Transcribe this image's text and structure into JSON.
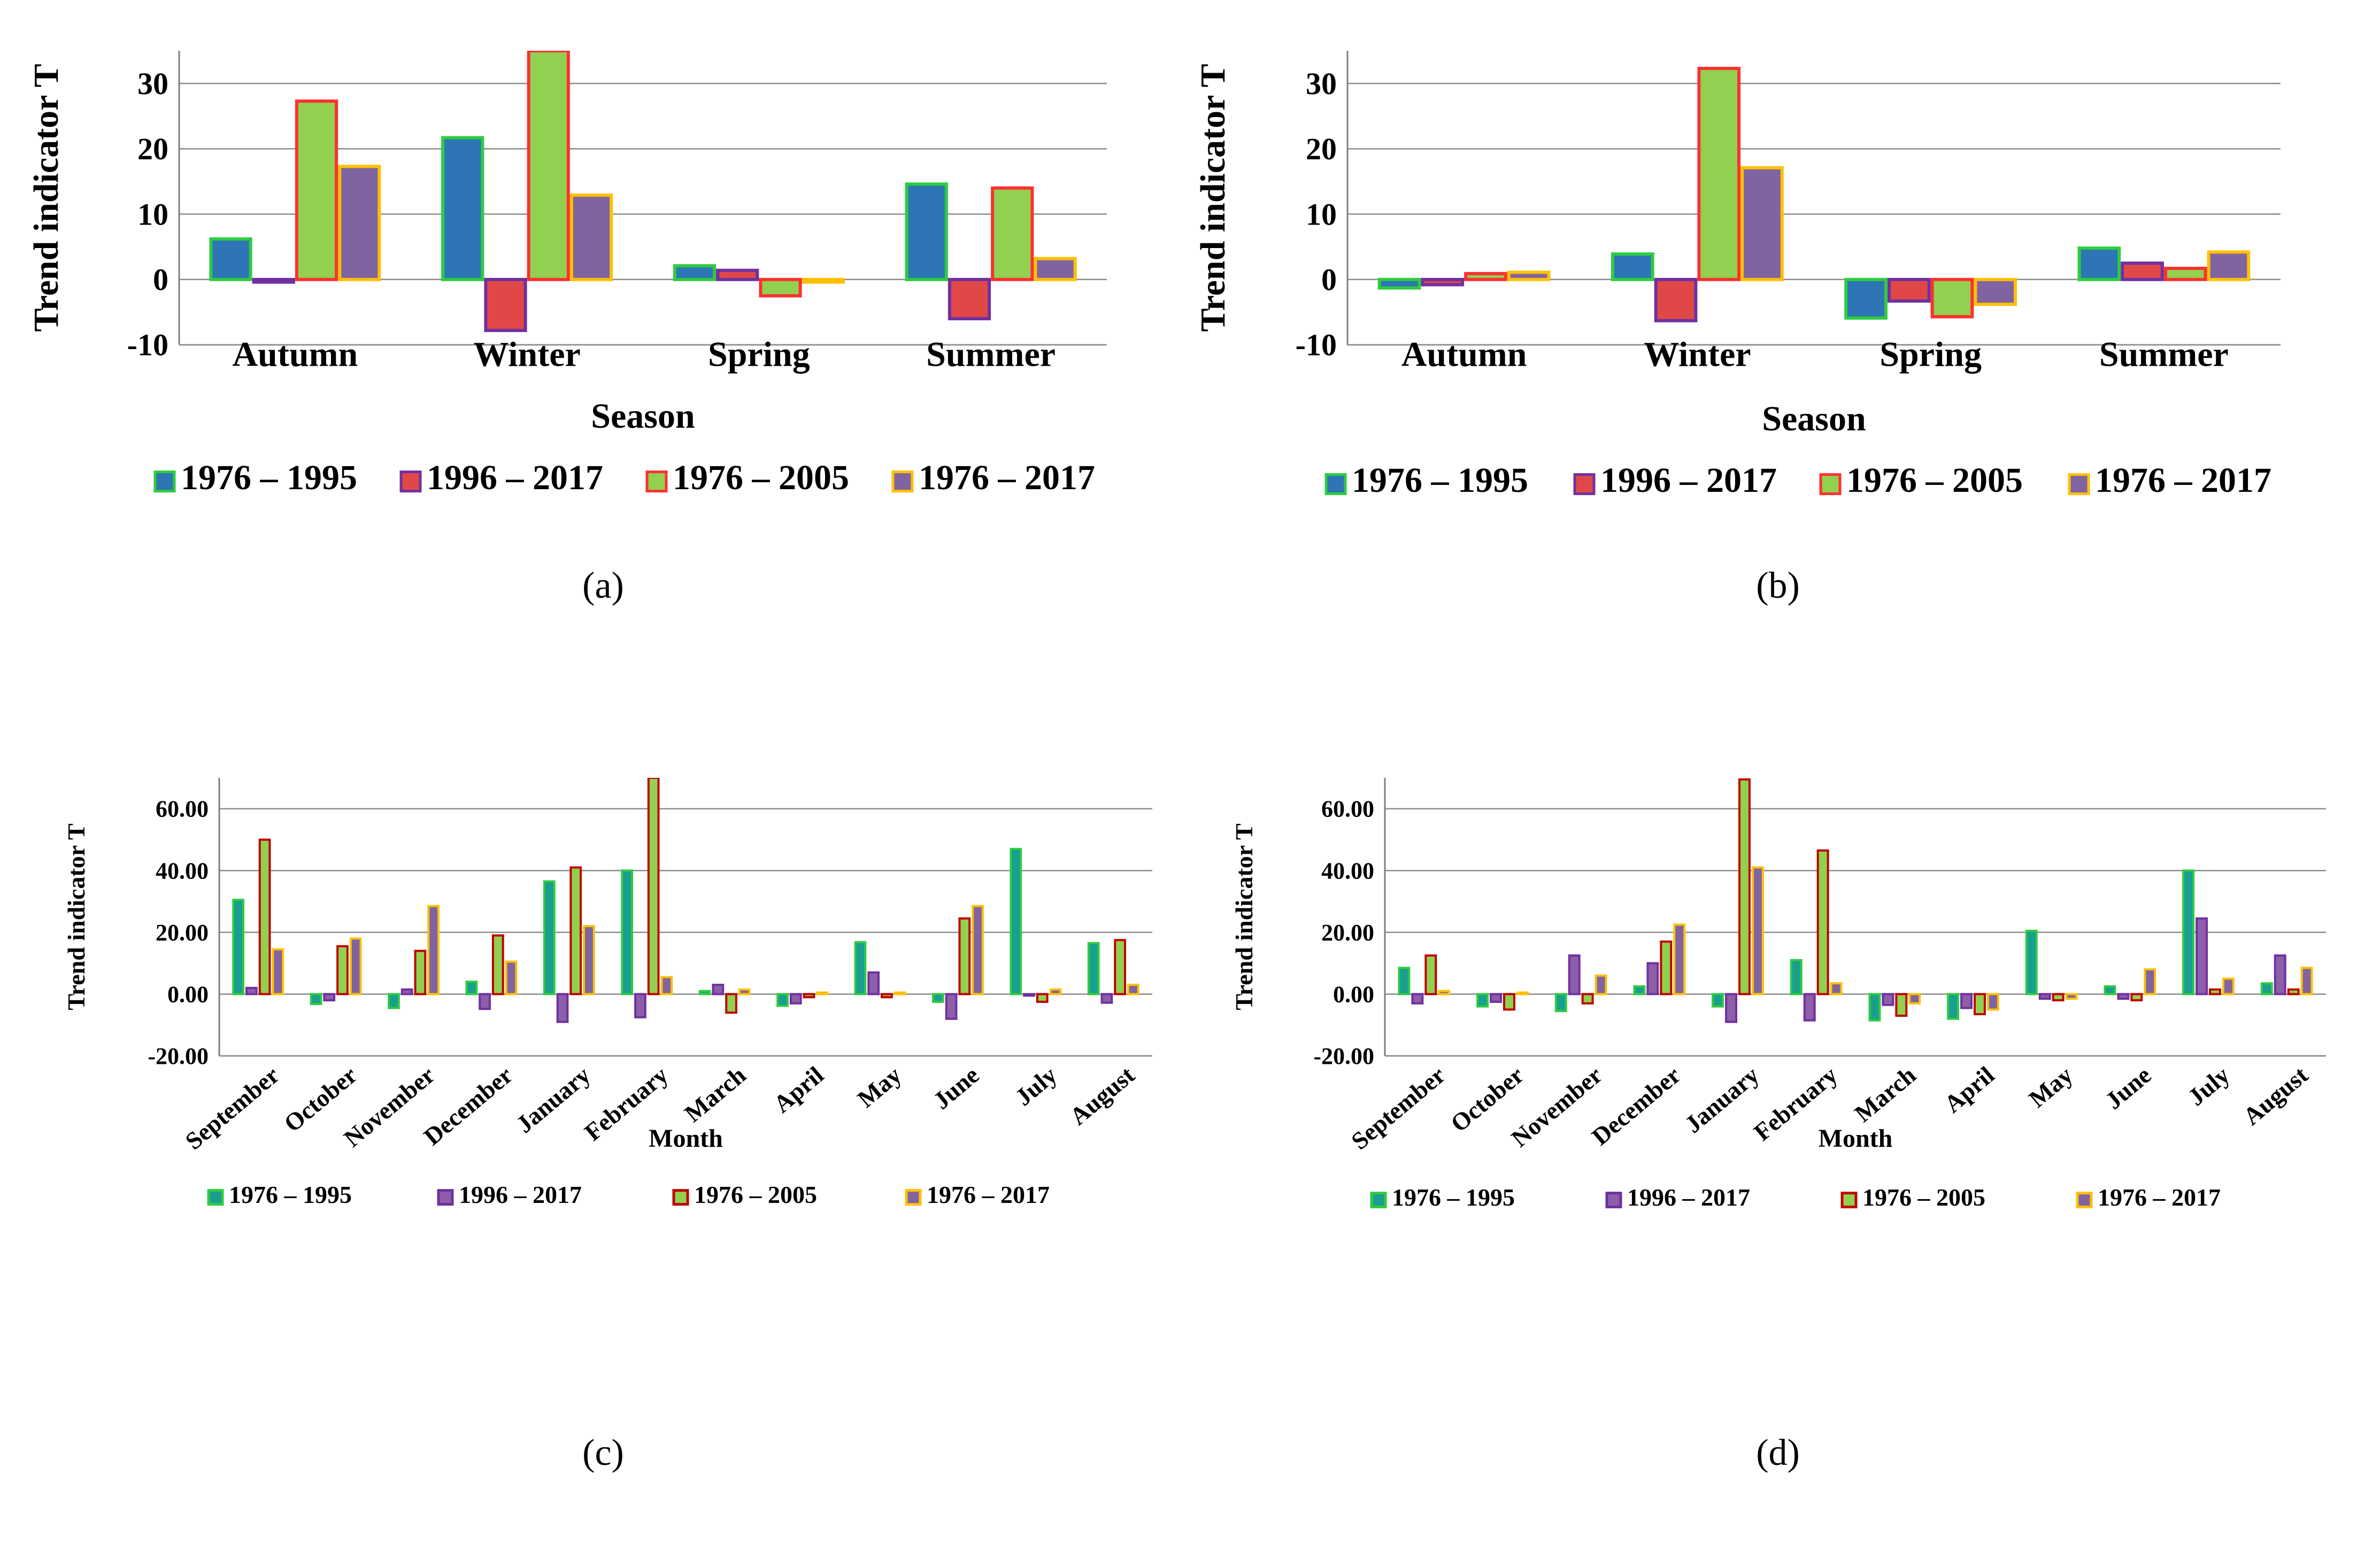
{
  "figure": {
    "captions": [
      "(a)",
      "(b)",
      "(c)",
      "(d)"
    ]
  },
  "colors": {
    "s1_fill": "#2e75b6",
    "s1_teal": "#1a9e8f",
    "s2_fill": "#e04848",
    "s2_purple": "#8c5fa8",
    "s3_fill": "#92d050",
    "s4_fill": "#8064a2",
    "edge_green": "#2ecc40",
    "edge_purple": "#7030a0",
    "edge_red": "#ff3030",
    "edge_darkred": "#c00000",
    "edge_yellow": "#ffc000"
  },
  "chart_data": [
    {
      "id": "a",
      "type": "bar",
      "xlabel": "Season",
      "ylabel": "Trend indicator T",
      "ylim": [
        -10,
        35
      ],
      "yticks": [
        "-10",
        "0",
        "10",
        "20",
        "30"
      ],
      "categories": [
        "Autumn",
        "Winter",
        "Spring",
        "Summer"
      ],
      "series": [
        {
          "name": "1976 – 1995",
          "values": [
            6.2,
            21.7,
            2.1,
            14.6
          ]
        },
        {
          "name": "1996 – 2017",
          "values": [
            -0.4,
            -7.8,
            1.4,
            -6.0
          ]
        },
        {
          "name": "1976 – 2005",
          "values": [
            27.3,
            35.0,
            -2.5,
            14.0
          ]
        },
        {
          "name": "1976 – 2017",
          "values": [
            17.3,
            12.9,
            -0.4,
            3.2
          ]
        }
      ]
    },
    {
      "id": "b",
      "type": "bar",
      "xlabel": "Season",
      "ylabel": "Trend indicator T",
      "ylim": [
        -10,
        35
      ],
      "yticks": [
        "-10",
        "0",
        "10",
        "20",
        "30"
      ],
      "categories": [
        "Autumn",
        "Winter",
        "Spring",
        "Summer"
      ],
      "series": [
        {
          "name": "1976 – 1995",
          "values": [
            -1.3,
            3.9,
            -5.9,
            4.8
          ]
        },
        {
          "name": "1996 – 2017",
          "values": [
            -0.8,
            -6.3,
            -3.3,
            2.5
          ]
        },
        {
          "name": "1976 – 2005",
          "values": [
            0.9,
            32.3,
            -5.7,
            1.7
          ]
        },
        {
          "name": "1976 – 2017",
          "values": [
            1.1,
            17.1,
            -3.8,
            4.2
          ]
        }
      ]
    },
    {
      "id": "c",
      "type": "bar",
      "xlabel": "Month",
      "ylabel": "Trend indicator T",
      "ylim": [
        -20,
        70
      ],
      "yticks": [
        "-20.00",
        "0.00",
        "20.00",
        "40.00",
        "60.00"
      ],
      "categories": [
        "September",
        "October",
        "November",
        "December",
        "January",
        "February",
        "March",
        "April",
        "May",
        "June",
        "July",
        "August"
      ],
      "series": [
        {
          "name": "1976 – 1995",
          "values": [
            30.5,
            -3.2,
            -4.5,
            4.0,
            36.5,
            40.0,
            1.0,
            -3.8,
            16.8,
            -2.5,
            47.0,
            16.5
          ]
        },
        {
          "name": "1996 – 2017",
          "values": [
            2.0,
            -2.0,
            1.5,
            -4.8,
            -9.0,
            -7.5,
            3.0,
            -3.0,
            7.0,
            -8.0,
            -0.5,
            -2.8
          ]
        },
        {
          "name": "1976 – 2005",
          "values": [
            50.0,
            15.5,
            14.0,
            19.0,
            41.0,
            70.0,
            -6.0,
            -1.0,
            -1.0,
            24.5,
            -2.5,
            17.5
          ]
        },
        {
          "name": "1976 – 2017",
          "values": [
            14.5,
            18.0,
            28.5,
            10.5,
            22.0,
            5.5,
            1.5,
            0.5,
            0.5,
            28.5,
            1.5,
            3.0
          ]
        }
      ]
    },
    {
      "id": "d",
      "type": "bar",
      "xlabel": "Month",
      "ylabel": "Trend indicator T",
      "ylim": [
        -20,
        70
      ],
      "yticks": [
        "-20.00",
        "0.00",
        "20.00",
        "40.00",
        "60.00"
      ],
      "categories": [
        "September",
        "October",
        "November",
        "December",
        "January",
        "February",
        "March",
        "April",
        "May",
        "June",
        "July",
        "August"
      ],
      "series": [
        {
          "name": "1976 – 1995",
          "values": [
            8.5,
            -4.0,
            -5.5,
            2.5,
            -4.0,
            11.0,
            -8.5,
            -8.0,
            20.5,
            2.5,
            40.0,
            3.5
          ]
        },
        {
          "name": "1996 – 2017",
          "values": [
            -3.0,
            -2.5,
            12.5,
            10.0,
            -9.0,
            -8.5,
            -3.5,
            -4.5,
            -1.5,
            -1.5,
            24.5,
            12.5
          ]
        },
        {
          "name": "1976 – 2005",
          "values": [
            12.5,
            -5.0,
            -3.0,
            17.0,
            69.5,
            46.5,
            -7.0,
            -6.5,
            -2.0,
            -2.0,
            1.5,
            1.5
          ]
        },
        {
          "name": "1976 – 2017",
          "values": [
            1.0,
            0.5,
            6.0,
            22.5,
            41.0,
            3.5,
            -3.0,
            -5.0,
            -1.5,
            8.0,
            5.0,
            8.5
          ]
        }
      ]
    }
  ]
}
